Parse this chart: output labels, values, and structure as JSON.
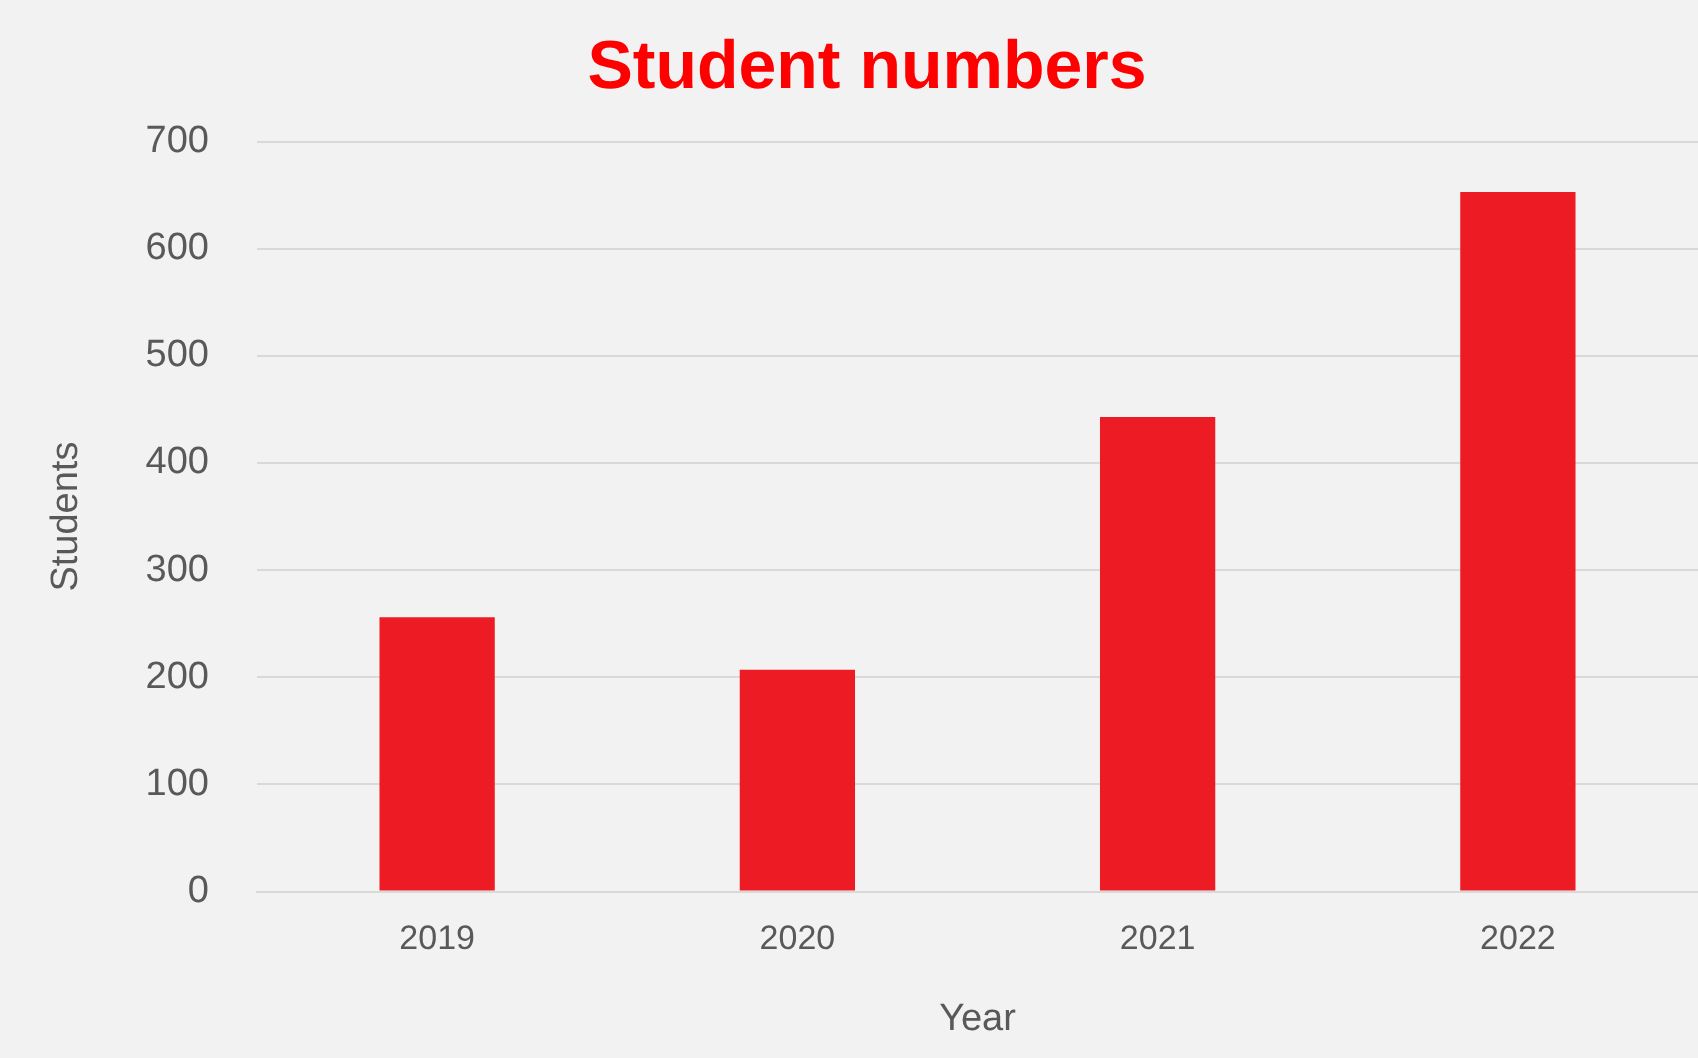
{
  "chart_data": {
    "type": "bar",
    "title": "Student numbers",
    "xlabel": "Year",
    "ylabel": "Students",
    "categories": [
      "2019",
      "2020",
      "2021",
      "2022"
    ],
    "series": [
      {
        "color": "#ed1c24",
        "values": [
          256,
          207,
          443,
          653
        ]
      }
    ],
    "ylim": [
      0,
      700
    ],
    "yticks": [
      0,
      100,
      200,
      300,
      400,
      500,
      600,
      700
    ],
    "grid": "y",
    "legend": false
  }
}
